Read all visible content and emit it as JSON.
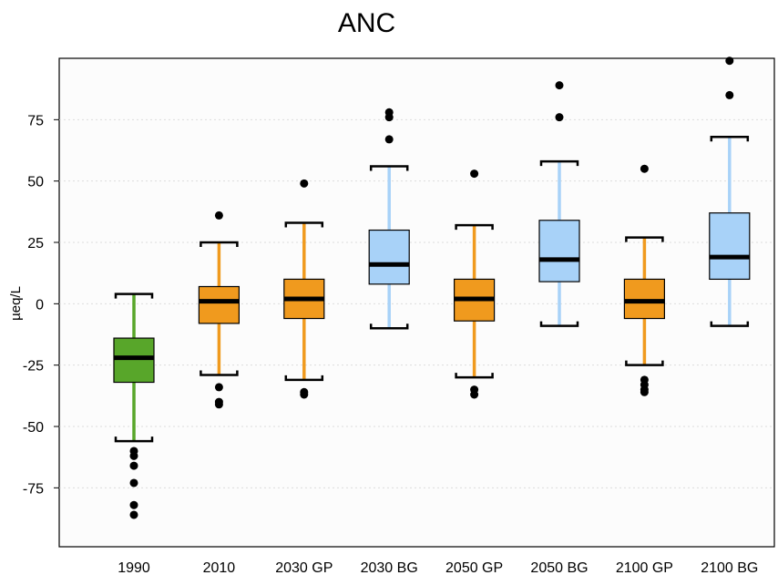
{
  "chart_data": {
    "type": "boxplot",
    "title": "ANC",
    "xlabel": "",
    "ylabel": "µeq/L",
    "ylim": [
      -99,
      100
    ],
    "yticks": [
      -75,
      -50,
      -25,
      0,
      25,
      50,
      75
    ],
    "grid": true,
    "categories": [
      "1990",
      "2010",
      "2030 GP",
      "2030 BG",
      "2050 GP",
      "2050 BG",
      "2100 GP",
      "2100 BG"
    ],
    "colors": [
      "#58a62a",
      "#f09a1e",
      "#f09a1e",
      "#a8d2f8",
      "#f09a1e",
      "#a8d2f8",
      "#f09a1e",
      "#a8d2f8"
    ],
    "whisker_colors": [
      "#58a62a",
      "#f09a1e",
      "#f09a1e",
      "#a8d2f8",
      "#f09a1e",
      "#a8d2f8",
      "#f09a1e",
      "#a8d2f8"
    ],
    "boxes": [
      {
        "whisker_low": -56,
        "q1": -32,
        "median": -22,
        "q3": -14,
        "whisker_high": 4,
        "outliers": [
          -60,
          -62,
          -66,
          -73,
          -82,
          -86
        ]
      },
      {
        "whisker_low": -29,
        "q1": -8,
        "median": 1,
        "q3": 7,
        "whisker_high": 25,
        "outliers": [
          36,
          -34,
          -40,
          -41
        ]
      },
      {
        "whisker_low": -31,
        "q1": -6,
        "median": 2,
        "q3": 10,
        "whisker_high": 33,
        "outliers": [
          49,
          -36,
          -37
        ]
      },
      {
        "whisker_low": -10,
        "q1": 8,
        "median": 16,
        "q3": 30,
        "whisker_high": 56,
        "outliers": [
          67,
          76,
          78
        ]
      },
      {
        "whisker_low": -30,
        "q1": -7,
        "median": 2,
        "q3": 10,
        "whisker_high": 32,
        "outliers": [
          53,
          -35,
          -37
        ]
      },
      {
        "whisker_low": -9,
        "q1": 9,
        "median": 18,
        "q3": 34,
        "whisker_high": 58,
        "outliers": [
          76,
          89
        ]
      },
      {
        "whisker_low": -25,
        "q1": -6,
        "median": 1,
        "q3": 10,
        "whisker_high": 27,
        "outliers": [
          55,
          -31,
          -33,
          -35,
          -36
        ]
      },
      {
        "whisker_low": -9,
        "q1": 10,
        "median": 19,
        "q3": 37,
        "whisker_high": 68,
        "outliers": [
          85,
          99
        ]
      }
    ]
  }
}
